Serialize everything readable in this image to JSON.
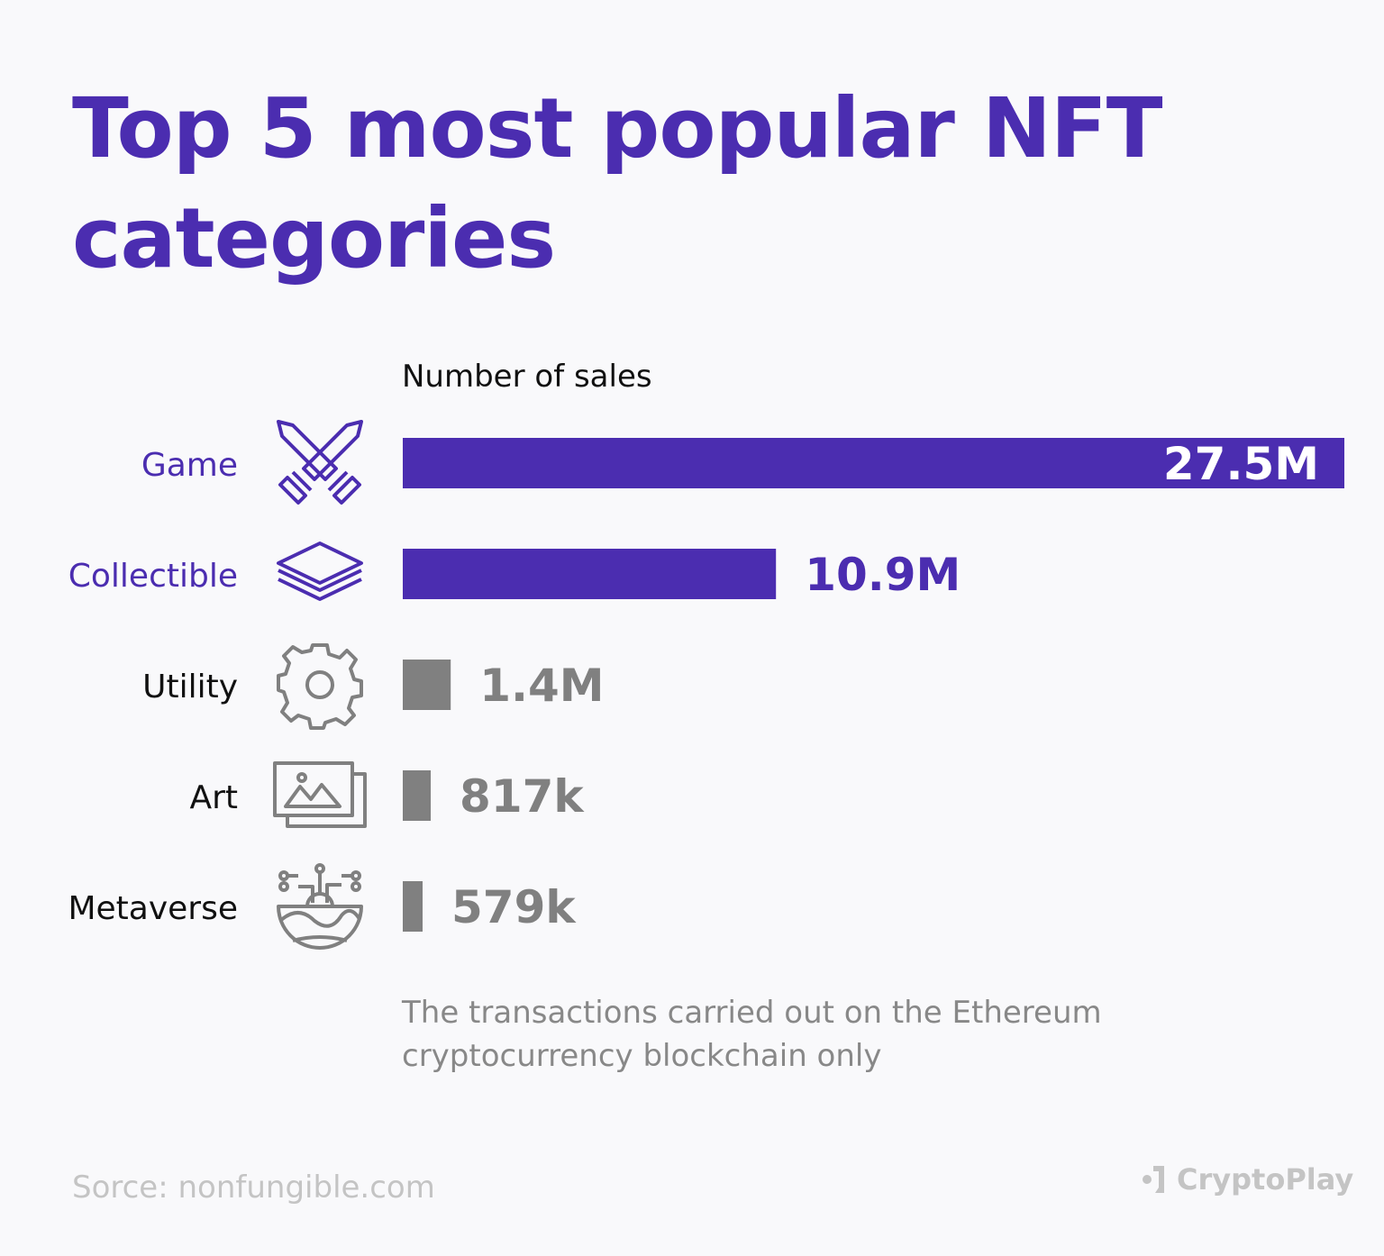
{
  "title": "Top 5 most popular NFT categories",
  "chart_data": {
    "type": "bar",
    "orientation": "horizontal",
    "title": "Top 5 most popular NFT categories",
    "subtitle": "Number of sales",
    "categories": [
      "Game",
      "Collectible",
      "Utility",
      "Art",
      "Metaverse"
    ],
    "values": [
      27500000,
      10900000,
      1400000,
      817000,
      579000
    ],
    "data_labels": [
      "27.5M",
      "10.9M",
      "1.4M",
      "817k",
      "579k"
    ],
    "icons": [
      "crossed-swords-icon",
      "layers-icon",
      "gear-icon",
      "images-icon",
      "metaverse-globe-icon"
    ],
    "highlighted": [
      true,
      true,
      false,
      false,
      false
    ],
    "colors": {
      "highlight": "#4b2db0",
      "muted": "#808080",
      "label_default": "#111111"
    },
    "grid": false,
    "legend": "none"
  },
  "note": "The transactions carried out on the Ethereum cryptocurrency blockchain only",
  "source": "Sorce:  nonfungible.com",
  "brand": "CryptoPlay"
}
